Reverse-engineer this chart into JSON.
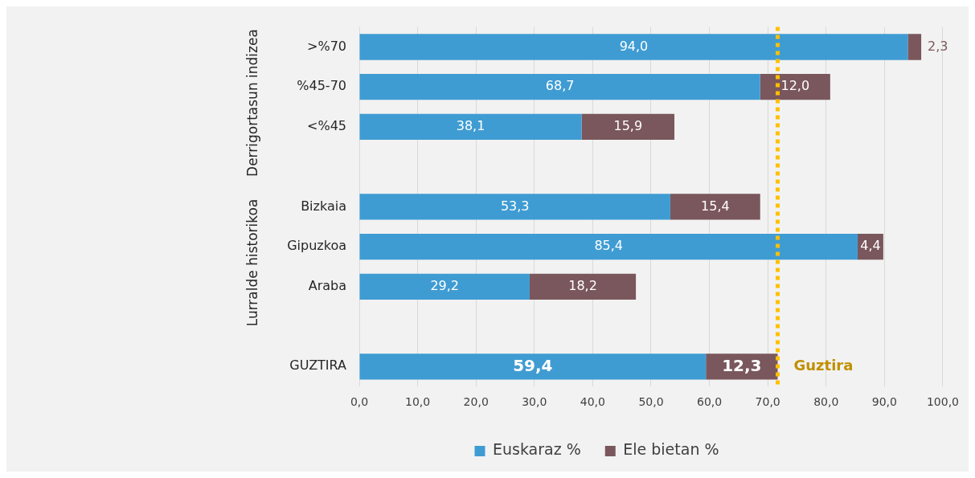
{
  "chart_data": {
    "type": "bar",
    "orientation": "horizontal",
    "stacked": true,
    "categories": [
      ">%70",
      "%45-70",
      "<%45",
      null,
      "Bizkaia",
      "Gipuzkoa",
      "Araba",
      null,
      "GUZTIRA"
    ],
    "series": [
      {
        "name": "Euskaraz %",
        "color": "#3f9cd3",
        "values": [
          94.0,
          68.7,
          38.1,
          null,
          53.3,
          85.4,
          29.2,
          null,
          59.4
        ],
        "value_labels": [
          "94,0",
          "68,7",
          "38,1",
          null,
          "53,3",
          "85,4",
          "29,2",
          null,
          "59,4"
        ]
      },
      {
        "name": "Ele bietan %",
        "color": "#7a575c",
        "values": [
          2.3,
          12.0,
          15.9,
          null,
          15.4,
          4.4,
          18.2,
          null,
          12.3
        ],
        "value_labels": [
          "2,3",
          "12,0",
          "15,9",
          null,
          "15,4",
          "4,4",
          "18,2",
          null,
          "12,3"
        ]
      }
    ],
    "xlim": [
      0,
      100
    ],
    "xticks": [
      {
        "value": 0,
        "label": "0,0"
      },
      {
        "value": 10,
        "label": "10,0"
      },
      {
        "value": 20,
        "label": "20,0"
      },
      {
        "value": 30,
        "label": "30,0"
      },
      {
        "value": 40,
        "label": "40,0"
      },
      {
        "value": 50,
        "label": "50,0"
      },
      {
        "value": 60,
        "label": "60,0"
      },
      {
        "value": 70,
        "label": "70,0"
      },
      {
        "value": 80,
        "label": "80,0"
      },
      {
        "value": 90,
        "label": "90,0"
      },
      {
        "value": 100,
        "label": "100,0"
      }
    ],
    "ref_lines": [
      {
        "axis": "x",
        "value": 71.7,
        "label": "Guztira",
        "color": "#ffc000",
        "line_style": "dotted"
      }
    ],
    "annotations": [
      "Derrigortasun indizea",
      "Lurralde historikoa"
    ],
    "grid": "x",
    "legend": "bottom"
  }
}
